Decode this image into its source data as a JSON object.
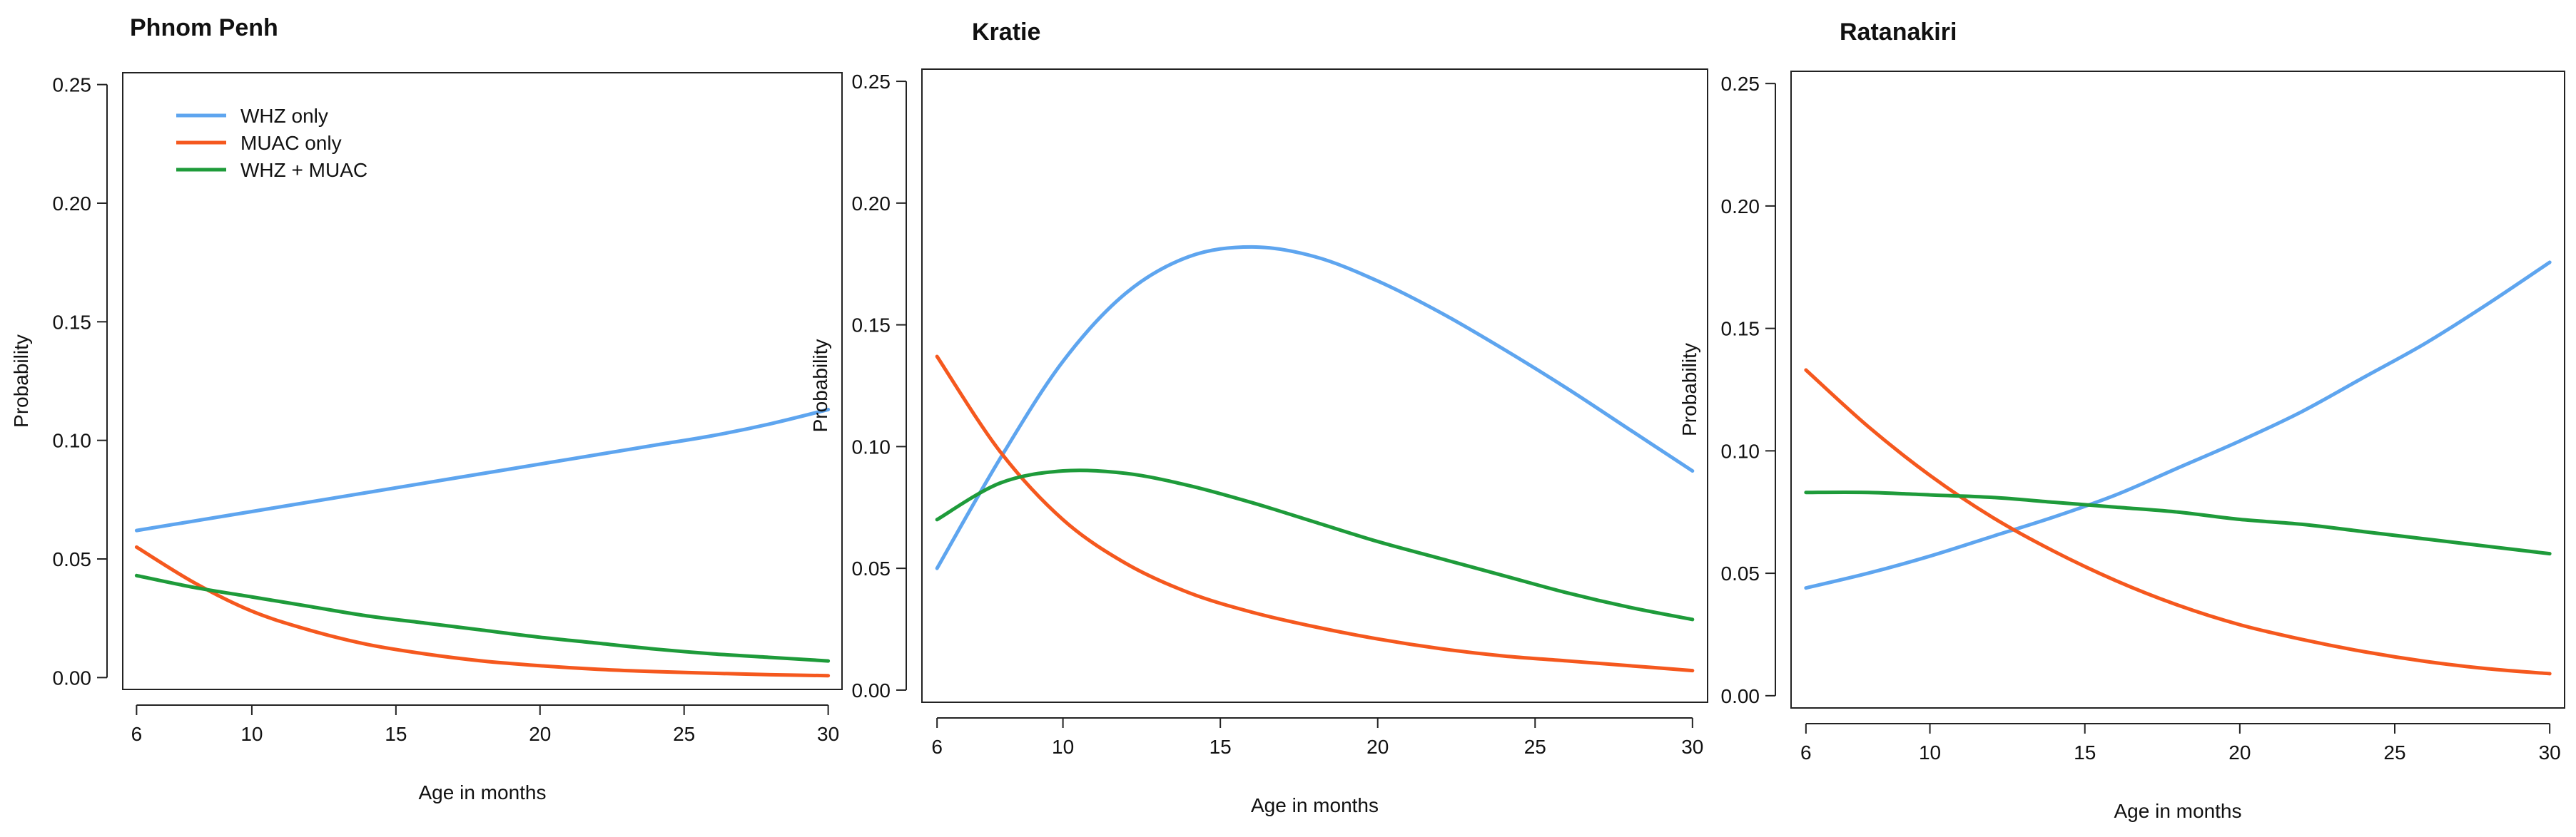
{
  "chart_data": [
    {
      "type": "line",
      "title": "Phnom Penh",
      "xlabel": "Age in months",
      "ylabel": "Probability",
      "xlim": [
        6,
        30
      ],
      "ylim": [
        0,
        0.25
      ],
      "xticks": [
        6,
        10,
        15,
        20,
        25,
        30
      ],
      "yticks": [
        0.0,
        0.05,
        0.1,
        0.15,
        0.2,
        0.25
      ],
      "ytick_labels": [
        "0.00",
        "0.05",
        "0.10",
        "0.15",
        "0.20",
        "0.25"
      ],
      "grid": false,
      "legend": "top-left",
      "x": [
        6,
        8,
        10,
        12,
        14,
        16,
        18,
        20,
        22,
        24,
        26,
        28,
        30
      ],
      "series": [
        {
          "name": "WHZ only",
          "color": "#5ea5ef",
          "values": [
            0.062,
            0.066,
            0.07,
            0.074,
            0.078,
            0.082,
            0.086,
            0.09,
            0.094,
            0.098,
            0.102,
            0.107,
            0.113
          ]
        },
        {
          "name": "MUAC only",
          "color": "#f5581e",
          "values": [
            0.055,
            0.04,
            0.028,
            0.02,
            0.014,
            0.01,
            0.007,
            0.005,
            0.0035,
            0.0025,
            0.0018,
            0.0012,
            0.0008
          ]
        },
        {
          "name": "WHZ + MUAC",
          "color": "#1e9b3a",
          "values": [
            0.043,
            0.038,
            0.034,
            0.03,
            0.026,
            0.023,
            0.02,
            0.017,
            0.0145,
            0.012,
            0.01,
            0.0085,
            0.007
          ]
        }
      ]
    },
    {
      "type": "line",
      "title": "Kratie",
      "xlabel": "Age in months",
      "ylabel": "Probability",
      "xlim": [
        6,
        30
      ],
      "ylim": [
        0,
        0.25
      ],
      "xticks": [
        6,
        10,
        15,
        20,
        25,
        30
      ],
      "yticks": [
        0.0,
        0.05,
        0.1,
        0.15,
        0.2,
        0.25
      ],
      "ytick_labels": [
        "0.00",
        "0.05",
        "0.10",
        "0.15",
        "0.20",
        "0.25"
      ],
      "grid": false,
      "x": [
        6,
        8,
        10,
        12,
        14,
        16,
        18,
        20,
        22,
        24,
        26,
        28,
        30
      ],
      "series": [
        {
          "name": "WHZ only",
          "color": "#5ea5ef",
          "values": [
            0.05,
            0.095,
            0.135,
            0.163,
            0.178,
            0.182,
            0.178,
            0.168,
            0.155,
            0.14,
            0.124,
            0.107,
            0.09
          ]
        },
        {
          "name": "MUAC only",
          "color": "#f5581e",
          "values": [
            0.137,
            0.098,
            0.07,
            0.052,
            0.04,
            0.032,
            0.026,
            0.021,
            0.017,
            0.014,
            0.012,
            0.01,
            0.008
          ]
        },
        {
          "name": "WHZ + MUAC",
          "color": "#1e9b3a",
          "values": [
            0.07,
            0.085,
            0.09,
            0.089,
            0.084,
            0.077,
            0.069,
            0.061,
            0.054,
            0.047,
            0.04,
            0.034,
            0.029
          ]
        }
      ]
    },
    {
      "type": "line",
      "title": "Ratanakiri",
      "xlabel": "Age in months",
      "ylabel": "Probability",
      "xlim": [
        6,
        30
      ],
      "ylim": [
        0,
        0.25
      ],
      "xticks": [
        6,
        10,
        15,
        20,
        25,
        30
      ],
      "yticks": [
        0.0,
        0.05,
        0.1,
        0.15,
        0.2,
        0.25
      ],
      "ytick_labels": [
        "0.00",
        "0.05",
        "0.10",
        "0.15",
        "0.20",
        "0.25"
      ],
      "grid": false,
      "x": [
        6,
        8,
        10,
        12,
        14,
        16,
        18,
        20,
        22,
        24,
        26,
        28,
        30
      ],
      "series": [
        {
          "name": "WHZ only",
          "color": "#5ea5ef",
          "values": [
            0.044,
            0.05,
            0.057,
            0.065,
            0.073,
            0.082,
            0.093,
            0.104,
            0.116,
            0.13,
            0.144,
            0.16,
            0.177
          ]
        },
        {
          "name": "MUAC only",
          "color": "#f5581e",
          "values": [
            0.133,
            0.11,
            0.09,
            0.073,
            0.059,
            0.047,
            0.037,
            0.029,
            0.023,
            0.018,
            0.014,
            0.011,
            0.009
          ]
        },
        {
          "name": "WHZ + MUAC",
          "color": "#1e9b3a",
          "values": [
            0.083,
            0.083,
            0.082,
            0.081,
            0.079,
            0.077,
            0.075,
            0.072,
            0.07,
            0.067,
            0.064,
            0.061,
            0.058
          ]
        }
      ]
    }
  ]
}
